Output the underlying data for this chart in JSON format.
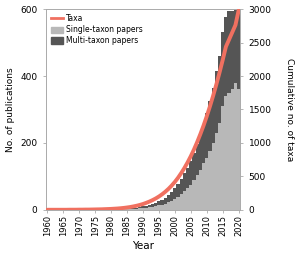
{
  "years": [
    1960,
    1961,
    1962,
    1963,
    1964,
    1965,
    1966,
    1967,
    1968,
    1969,
    1970,
    1971,
    1972,
    1973,
    1974,
    1975,
    1976,
    1977,
    1978,
    1979,
    1980,
    1981,
    1982,
    1983,
    1984,
    1985,
    1986,
    1987,
    1988,
    1989,
    1990,
    1991,
    1992,
    1993,
    1994,
    1995,
    1996,
    1997,
    1998,
    1999,
    2000,
    2001,
    2002,
    2003,
    2004,
    2005,
    2006,
    2007,
    2008,
    2009,
    2010,
    2011,
    2012,
    2013,
    2014,
    2015,
    2016,
    2017,
    2018,
    2019,
    2020
  ],
  "single_taxon": [
    0,
    0,
    0,
    0,
    0,
    0,
    0,
    0,
    0,
    0,
    0,
    0,
    0,
    0,
    0,
    0,
    0,
    0,
    0,
    0,
    1,
    1,
    1,
    1,
    2,
    2,
    3,
    3,
    4,
    5,
    6,
    7,
    8,
    9,
    11,
    14,
    16,
    19,
    23,
    28,
    33,
    40,
    48,
    57,
    65,
    75,
    90,
    105,
    120,
    140,
    155,
    175,
    200,
    230,
    260,
    310,
    340,
    350,
    360,
    380,
    360
  ],
  "multi_taxon": [
    0,
    0,
    0,
    0,
    0,
    0,
    0,
    0,
    0,
    0,
    0,
    0,
    0,
    0,
    0,
    0,
    0,
    0,
    0,
    0,
    0,
    0,
    0,
    1,
    1,
    1,
    2,
    2,
    3,
    4,
    5,
    6,
    7,
    8,
    10,
    12,
    15,
    18,
    22,
    26,
    32,
    38,
    45,
    52,
    60,
    70,
    80,
    92,
    105,
    118,
    135,
    150,
    165,
    185,
    200,
    220,
    235,
    245,
    235,
    218,
    240
  ],
  "taxa_cumulative": [
    2,
    2,
    2,
    2,
    2,
    2,
    2,
    3,
    3,
    3,
    4,
    4,
    5,
    5,
    6,
    7,
    8,
    9,
    11,
    13,
    15,
    18,
    21,
    25,
    30,
    36,
    43,
    52,
    62,
    74,
    88,
    105,
    124,
    146,
    171,
    200,
    233,
    271,
    314,
    363,
    418,
    480,
    550,
    626,
    710,
    802,
    903,
    1013,
    1132,
    1260,
    1398,
    1546,
    1704,
    1872,
    2050,
    2238,
    2436,
    2544,
    2652,
    2760,
    2980
  ],
  "single_color": "#b8b8b8",
  "multi_color": "#555555",
  "taxa_color": "#f07060",
  "background_color": "#ffffff",
  "ylabel_left": "No. of publications",
  "ylabel_right": "Cumulative no. of taxa",
  "xlabel": "Year",
  "ylim_left": [
    0,
    600
  ],
  "ylim_right": [
    0,
    3000
  ],
  "yticks_left": [
    0,
    200,
    400,
    600
  ],
  "yticks_right": [
    0,
    500,
    1000,
    1500,
    2000,
    2500,
    3000
  ],
  "xtick_labels": [
    "1960",
    "1965",
    "1970",
    "1975",
    "1980",
    "1985",
    "1990",
    "1995",
    "2000",
    "2005",
    "2010",
    "2015",
    "2020"
  ],
  "xtick_years": [
    1960,
    1965,
    1970,
    1975,
    1980,
    1985,
    1990,
    1995,
    2000,
    2005,
    2010,
    2015,
    2020
  ],
  "legend_taxa": "Taxa",
  "legend_single": "Single-taxon papers",
  "legend_multi": "Multi-taxon papers",
  "taxa_linewidth": 2.8
}
